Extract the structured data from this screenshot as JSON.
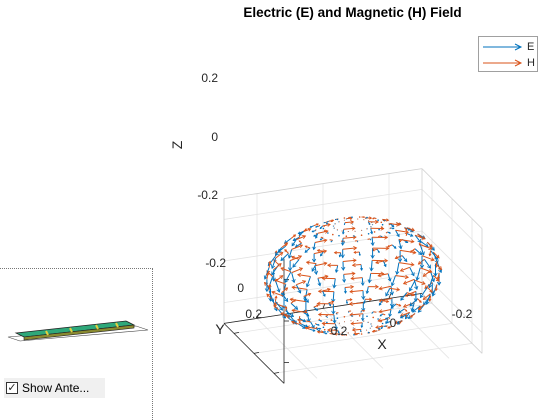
{
  "title": "Electric (E) and Magnetic (H) Field",
  "axes": {
    "xlabel": "X",
    "ylabel": "Y",
    "zlabel": "Z",
    "x_ticks": [
      "0.2",
      "0",
      "-0.2"
    ],
    "y_ticks": [
      "-0.2",
      "0",
      "0.2"
    ],
    "z_ticks": [
      "0.2",
      "0",
      "-0.2"
    ]
  },
  "legend": [
    {
      "name": "E",
      "color": "#0072BD"
    },
    {
      "name": "H",
      "color": "#D95319"
    }
  ],
  "antenna_panel": {
    "checkbox_label": "Show Ante...",
    "checked": true,
    "check_mark": "✓"
  },
  "chart_data": {
    "type": "quiver3d",
    "title": "Electric (E) and Magnetic (H) Field",
    "xlabel": "X",
    "ylabel": "Y",
    "zlabel": "Z",
    "xlim": [
      -0.3,
      0.3
    ],
    "ylim": [
      -0.3,
      0.3
    ],
    "zlim": [
      -0.3,
      0.3
    ],
    "grid": true,
    "legend_position": "top-right",
    "series": [
      {
        "name": "E",
        "color": "#0072BD"
      },
      {
        "name": "H",
        "color": "#D95319"
      }
    ],
    "sphere_radius": 0.25
  }
}
